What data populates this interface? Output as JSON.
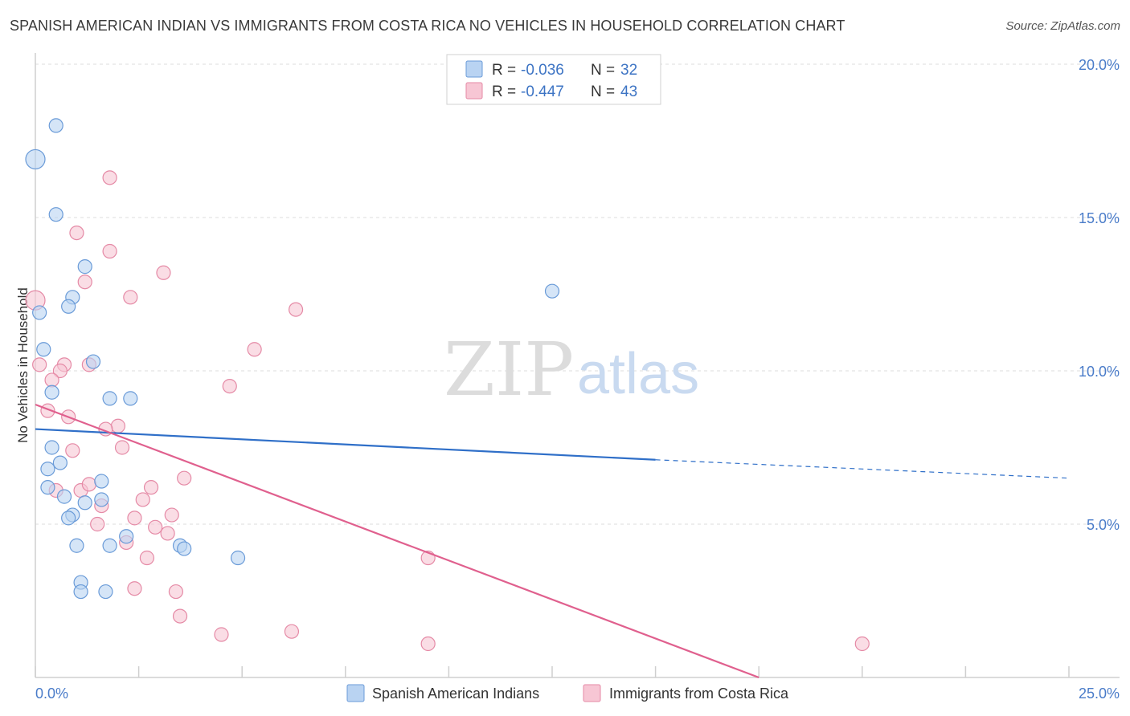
{
  "title": "SPANISH AMERICAN INDIAN VS IMMIGRANTS FROM COSTA RICA NO VEHICLES IN HOUSEHOLD CORRELATION CHART",
  "source": "Source: ZipAtlas.com",
  "watermark": {
    "part1": "ZIP",
    "part2": "atlas"
  },
  "colors": {
    "blue_fill": "#b9d3f2",
    "blue_stroke": "#6a9bd8",
    "blue_line": "#2f6fc8",
    "pink_fill": "#f7c6d4",
    "pink_stroke": "#e58aa6",
    "pink_line": "#e0608e",
    "tick_text": "#4a7cc9",
    "grid": "#dddddd"
  },
  "legend": {
    "rows": [
      {
        "r_label": "R = ",
        "r_value": "-0.036",
        "n_label": "N = ",
        "n_value": "32"
      },
      {
        "r_label": "R = ",
        "r_value": "-0.447",
        "n_label": "N = ",
        "n_value": "43"
      }
    ]
  },
  "bottom_legend": [
    "Spanish American Indians",
    "Immigrants from Costa Rica"
  ],
  "chart_data": {
    "type": "scatter",
    "title": "SPANISH AMERICAN INDIAN VS IMMIGRANTS FROM COSTA RICA NO VEHICLES IN HOUSEHOLD CORRELATION CHART",
    "xlabel": "",
    "ylabel": "No Vehicles in Household",
    "xlim": [
      0,
      25
    ],
    "ylim": [
      0,
      20
    ],
    "x_tick_labels": [
      "0.0%",
      "25.0%"
    ],
    "y_ticks": [
      5,
      10,
      15,
      20
    ],
    "y_tick_labels": [
      "5.0%",
      "10.0%",
      "15.0%",
      "20.0%"
    ],
    "series": [
      {
        "name": "Spanish American Indians",
        "r": -0.036,
        "n": 32,
        "points": [
          [
            0.0,
            16.9
          ],
          [
            0.5,
            18.0
          ],
          [
            0.5,
            15.1
          ],
          [
            0.1,
            11.9
          ],
          [
            0.2,
            10.7
          ],
          [
            1.2,
            13.4
          ],
          [
            0.9,
            12.4
          ],
          [
            0.8,
            12.1
          ],
          [
            1.4,
            10.3
          ],
          [
            0.4,
            9.3
          ],
          [
            1.8,
            9.1
          ],
          [
            2.3,
            9.1
          ],
          [
            0.4,
            7.5
          ],
          [
            0.6,
            7.0
          ],
          [
            0.3,
            6.8
          ],
          [
            0.3,
            6.2
          ],
          [
            0.7,
            5.9
          ],
          [
            1.6,
            6.4
          ],
          [
            1.2,
            5.7
          ],
          [
            1.6,
            5.8
          ],
          [
            0.9,
            5.3
          ],
          [
            0.8,
            5.2
          ],
          [
            2.2,
            4.6
          ],
          [
            1.0,
            4.3
          ],
          [
            1.8,
            4.3
          ],
          [
            3.5,
            4.3
          ],
          [
            3.6,
            4.2
          ],
          [
            4.9,
            3.9
          ],
          [
            1.1,
            3.1
          ],
          [
            1.1,
            2.8
          ],
          [
            1.7,
            2.8
          ],
          [
            12.5,
            12.6
          ]
        ],
        "trend": {
          "x": [
            0,
            15
          ],
          "y": [
            8.1,
            7.1
          ],
          "dashed_to": [
            25,
            6.5
          ]
        }
      },
      {
        "name": "Immigrants from Costa Rica",
        "r": -0.447,
        "n": 43,
        "points": [
          [
            0.0,
            12.3
          ],
          [
            1.8,
            16.3
          ],
          [
            1.0,
            14.5
          ],
          [
            1.8,
            13.9
          ],
          [
            3.1,
            13.2
          ],
          [
            1.2,
            12.9
          ],
          [
            2.3,
            12.4
          ],
          [
            6.3,
            12.0
          ],
          [
            5.3,
            10.7
          ],
          [
            0.1,
            10.2
          ],
          [
            0.7,
            10.2
          ],
          [
            1.3,
            10.2
          ],
          [
            0.6,
            10.0
          ],
          [
            0.4,
            9.7
          ],
          [
            4.7,
            9.5
          ],
          [
            0.3,
            8.7
          ],
          [
            0.8,
            8.5
          ],
          [
            2.0,
            8.2
          ],
          [
            1.7,
            8.1
          ],
          [
            0.9,
            7.4
          ],
          [
            2.1,
            7.5
          ],
          [
            3.6,
            6.5
          ],
          [
            0.5,
            6.1
          ],
          [
            1.1,
            6.1
          ],
          [
            1.3,
            6.3
          ],
          [
            2.8,
            6.2
          ],
          [
            2.6,
            5.8
          ],
          [
            1.6,
            5.6
          ],
          [
            3.3,
            5.3
          ],
          [
            2.4,
            5.2
          ],
          [
            1.5,
            5.0
          ],
          [
            2.9,
            4.9
          ],
          [
            3.2,
            4.7
          ],
          [
            2.2,
            4.4
          ],
          [
            2.7,
            3.9
          ],
          [
            9.5,
            3.9
          ],
          [
            2.4,
            2.9
          ],
          [
            3.4,
            2.8
          ],
          [
            3.5,
            2.0
          ],
          [
            4.5,
            1.4
          ],
          [
            6.2,
            1.5
          ],
          [
            9.5,
            1.1
          ],
          [
            20.0,
            1.1
          ]
        ],
        "trend": {
          "x": [
            0,
            17.5
          ],
          "y": [
            8.9,
            0.0
          ]
        }
      }
    ]
  }
}
